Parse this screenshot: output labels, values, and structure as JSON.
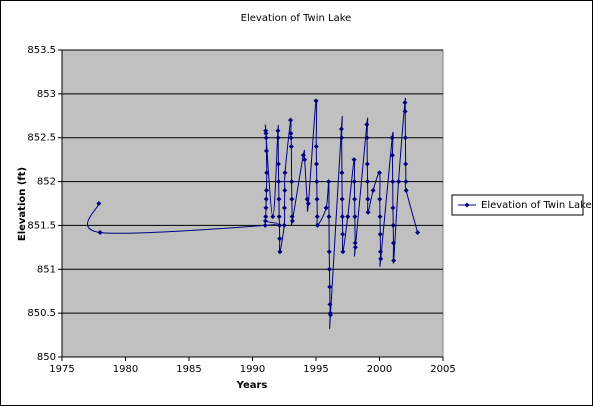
{
  "chart_data": {
    "type": "scatter",
    "title": "Elevation of Twin Lake",
    "xlabel": "Years",
    "ylabel": "Elevation (ft)",
    "xlim": [
      1975,
      2005
    ],
    "xticks": [
      1975,
      1980,
      1985,
      1990,
      1995,
      2000,
      2005
    ],
    "ylim": [
      850,
      853.5
    ],
    "yticks": [
      850,
      850.5,
      851,
      851.5,
      852,
      852.5,
      853,
      853.5
    ],
    "grid": true,
    "legend": "right",
    "series": [
      {
        "name": "Elevation of Twin Lake",
        "color": "#000080",
        "x": [
          1977.9,
          1978.0,
          1991.0,
          1991.02,
          1991.04,
          1991.06,
          1991.08,
          1991.1,
          1991.12,
          1991.1,
          1991.08,
          1991.06,
          1991.04,
          1991.6,
          1992.0,
          1992.02,
          1992.04,
          1992.06,
          1992.08,
          1992.1,
          1992.12,
          1992.14,
          1992.16,
          1992.5,
          1992.52,
          1992.54,
          1992.56,
          1993.0,
          1993.02,
          1993.04,
          1993.06,
          1993.08,
          1993.1,
          1993.12,
          1993.14,
          1994.0,
          1994.1,
          1994.3,
          1994.4,
          1995.0,
          1995.02,
          1995.04,
          1995.06,
          1995.08,
          1995.1,
          1995.12,
          1995.8,
          1996.0,
          1996.02,
          1996.04,
          1996.06,
          1996.08,
          1996.1,
          1996.12,
          1996.14,
          1997.0,
          1997.02,
          1997.04,
          1997.06,
          1997.08,
          1997.1,
          1997.12,
          1997.5,
          1998.0,
          1998.02,
          1998.04,
          1998.06,
          1998.08,
          1998.1,
          1999.0,
          1999.02,
          1999.04,
          1999.06,
          1999.08,
          1999.1,
          1999.5,
          2000.0,
          2000.02,
          2000.04,
          2000.06,
          2000.08,
          2000.1,
          2001.0,
          2001.02,
          2001.04,
          2001.06,
          2001.08,
          2001.1,
          2001.12,
          2001.5,
          2002.0,
          2002.02,
          2002.04,
          2002.06,
          2002.08,
          2002.1,
          2003.0
        ],
        "values": [
          851.75,
          851.42,
          851.5,
          851.55,
          851.6,
          851.7,
          851.8,
          851.9,
          852.1,
          852.35,
          852.5,
          852.55,
          852.58,
          851.6,
          852.58,
          852.5,
          852.2,
          852.0,
          851.8,
          851.6,
          851.5,
          851.35,
          851.2,
          851.5,
          851.7,
          851.9,
          852.1,
          852.7,
          852.55,
          852.5,
          852.4,
          852.0,
          851.8,
          851.6,
          851.55,
          852.3,
          852.25,
          851.8,
          851.75,
          852.92,
          852.4,
          852.2,
          852.0,
          851.8,
          851.6,
          851.5,
          851.7,
          852.0,
          851.6,
          851.2,
          851.0,
          850.8,
          850.6,
          850.5,
          850.48,
          852.6,
          852.5,
          852.1,
          851.8,
          851.6,
          851.4,
          851.2,
          851.6,
          852.25,
          852.0,
          851.8,
          851.6,
          851.3,
          851.25,
          852.65,
          852.5,
          852.2,
          852.0,
          851.8,
          851.65,
          851.9,
          852.1,
          851.8,
          851.6,
          851.4,
          851.2,
          851.12,
          852.5,
          852.3,
          852.0,
          851.7,
          851.5,
          851.3,
          851.1,
          852.0,
          852.9,
          852.8,
          852.5,
          852.2,
          852.0,
          851.9,
          851.42
        ]
      }
    ]
  }
}
